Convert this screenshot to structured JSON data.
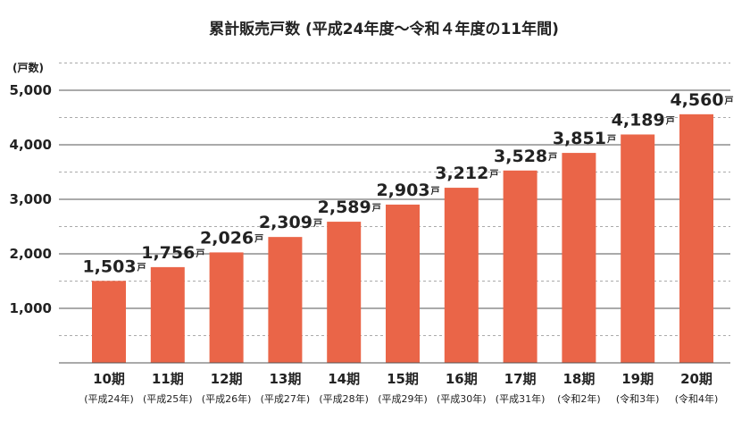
{
  "chart_data": {
    "type": "bar",
    "title": "累計販売戸数 (平成24年度～令和４年度の11年間)",
    "ylabel": "(戸数)",
    "ylim": [
      0,
      5500
    ],
    "yticks": [
      1000,
      2000,
      3000,
      4000,
      5000
    ],
    "ytick_labels": [
      "1,000",
      "2,000",
      "3,000",
      "4,000",
      "5,000"
    ],
    "grid": true,
    "categories": [
      "10期",
      "11期",
      "12期",
      "13期",
      "14期",
      "15期",
      "16期",
      "17期",
      "18期",
      "19期",
      "20期"
    ],
    "subcategories": [
      "(平成24年)",
      "(平成25年)",
      "(平成26年)",
      "(平成27年)",
      "(平成28年)",
      "(平成29年)",
      "(平成30年)",
      "(平成31年)",
      "(令和2年)",
      "(令和3年)",
      "(令和4年)"
    ],
    "values": [
      1503,
      1756,
      2026,
      2309,
      2589,
      2903,
      3212,
      3528,
      3851,
      4189,
      4560
    ],
    "value_labels": [
      "1,503",
      "1,756",
      "2,026",
      "2,309",
      "2,589",
      "2,903",
      "3,212",
      "3,528",
      "3,851",
      "4,189",
      "4,560"
    ],
    "value_unit": "戸",
    "bar_color": "#ea6548"
  }
}
